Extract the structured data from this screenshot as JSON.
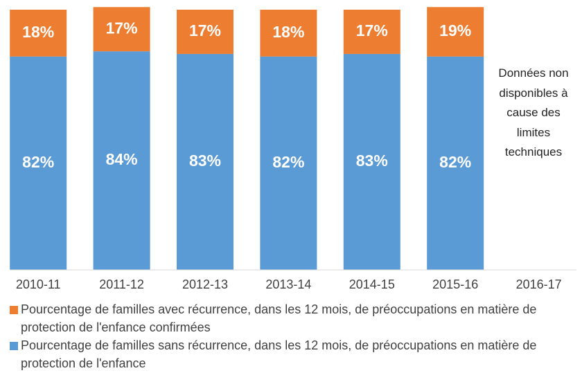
{
  "chart_data": {
    "type": "stacked_bar",
    "categories": [
      "2010-11",
      "2011-12",
      "2012-13",
      "2013-14",
      "2014-15",
      "2015-16",
      "2016-17"
    ],
    "series": [
      {
        "name": "Pourcentage de familles avec récurrence, dans les 12 mois, de préoccupations en matière de protection de l'enfance confirmées",
        "color": "#ED7D31",
        "values": [
          18,
          17,
          17,
          18,
          17,
          19,
          null
        ],
        "value_labels": [
          "18%",
          "17%",
          "17%",
          "18%",
          "17%",
          "19%",
          null
        ]
      },
      {
        "name": "Pourcentage de familles sans récurrence, dans les 12 mois, de préoccupations en matière de protection de l'enfance",
        "color": "#5B9BD5",
        "values": [
          82,
          84,
          83,
          82,
          83,
          82,
          null
        ],
        "value_labels": [
          "82%",
          "84%",
          "83%",
          "82%",
          "83%",
          "82%",
          null
        ]
      }
    ],
    "annotation": "Données non disponibles à cause des limites techniques",
    "ylim": [
      0,
      100
    ]
  }
}
